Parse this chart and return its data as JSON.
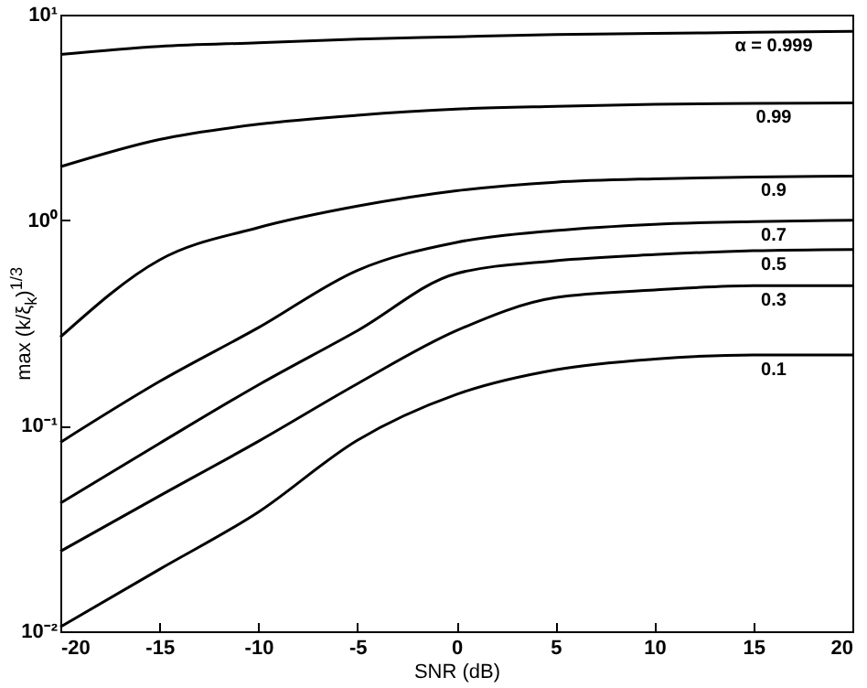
{
  "chart_data": {
    "type": "line",
    "xlabel": "SNR (dB)",
    "ylabel": "max (k/ξ$_{k}$)$^{1/3}$",
    "x": [
      -20,
      -15,
      -10,
      -5,
      0,
      5,
      10,
      15,
      20
    ],
    "series": [
      {
        "name": "α = 0.999",
        "color": "#000000",
        "values": [
          6.4,
          7.0,
          7.3,
          7.6,
          7.8,
          8.0,
          8.1,
          8.2,
          8.3
        ]
      },
      {
        "name": "0.99",
        "color": "#000000",
        "values": [
          1.82,
          2.47,
          2.93,
          3.24,
          3.47,
          3.58,
          3.66,
          3.7,
          3.72
        ]
      },
      {
        "name": "0.9",
        "color": "#000000",
        "values": [
          0.27,
          0.64,
          0.92,
          1.17,
          1.39,
          1.53,
          1.59,
          1.62,
          1.64
        ]
      },
      {
        "name": "0.7",
        "color": "#000000",
        "values": [
          0.083,
          0.164,
          0.3,
          0.57,
          0.78,
          0.89,
          0.955,
          0.985,
          1.0
        ]
      },
      {
        "name": "0.5",
        "color": "#000000",
        "values": [
          0.042,
          0.082,
          0.158,
          0.29,
          0.55,
          0.635,
          0.68,
          0.71,
          0.72
        ]
      },
      {
        "name": "0.3",
        "color": "#000000",
        "values": [
          0.0245,
          0.0455,
          0.084,
          0.16,
          0.29,
          0.42,
          0.457,
          0.48,
          0.48
        ]
      },
      {
        "name": "0.1",
        "color": "#000000",
        "values": [
          0.0105,
          0.02,
          0.038,
          0.085,
          0.142,
          0.187,
          0.211,
          0.221,
          0.221
        ]
      }
    ],
    "xlim": [
      -20,
      20
    ],
    "xticks": [
      -20,
      -15,
      -10,
      -5,
      0,
      5,
      10,
      15,
      20
    ],
    "ylim": [
      0.01,
      10
    ],
    "yticks": [
      {
        "value": 0.01,
        "label": "10⁻²"
      },
      {
        "value": 0.1,
        "label": "10⁻¹"
      },
      {
        "value": 1,
        "label": "10⁰"
      },
      {
        "value": 10,
        "label": "10¹"
      }
    ],
    "log": "y",
    "grid": false,
    "marker": "none",
    "line_style": "solid"
  }
}
